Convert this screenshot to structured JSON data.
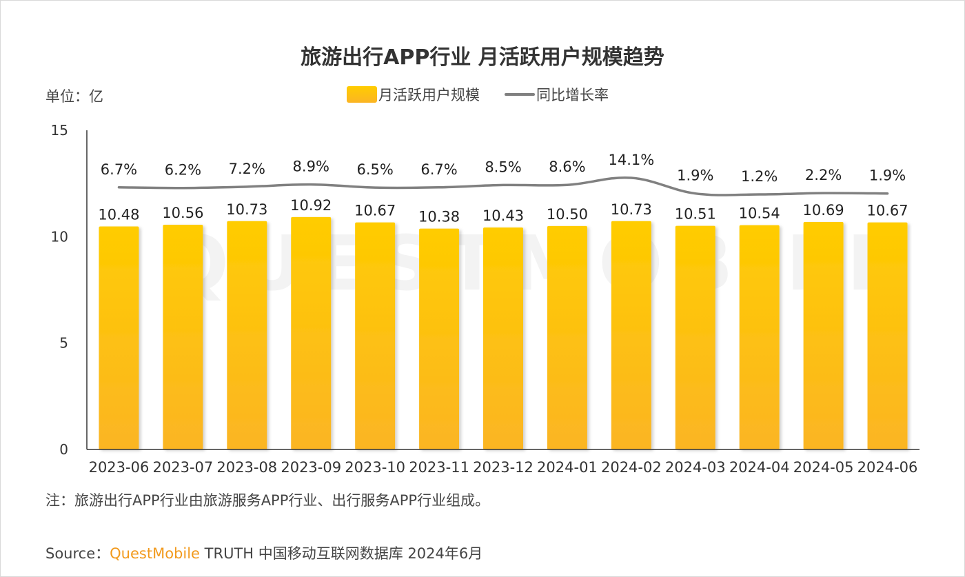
{
  "title": "旅游出行APP行业 月活跃用户规模趋势",
  "unit": "单位：亿",
  "legend": {
    "bar": "月活跃用户规模",
    "line": "同比增长率"
  },
  "note": "注：旅游出行APP行业由旅游服务APP行业、出行服务APP行业组成。",
  "source": {
    "prefix": "Source：",
    "brand": "QuestMobile",
    "rest": " TRUTH 中国移动互联网数据库 2024年6月"
  },
  "watermark": "QUESTMOBILE",
  "colors": {
    "bar_top": "#ffcc00",
    "bar_bottom": "#fbb524",
    "line": "#808080",
    "brand": "#f29a1d"
  },
  "chart_data": {
    "type": "bar",
    "categories": [
      "2023-06",
      "2023-07",
      "2023-08",
      "2023-09",
      "2023-10",
      "2023-11",
      "2023-12",
      "2024-01",
      "2024-02",
      "2024-03",
      "2024-04",
      "2024-05",
      "2024-06"
    ],
    "series": [
      {
        "name": "月活跃用户规模",
        "type": "bar",
        "values": [
          10.48,
          10.56,
          10.73,
          10.92,
          10.67,
          10.38,
          10.43,
          10.5,
          10.73,
          10.51,
          10.54,
          10.69,
          10.67
        ],
        "labels": [
          "10.48",
          "10.56",
          "10.73",
          "10.92",
          "10.67",
          "10.38",
          "10.43",
          "10.50",
          "10.73",
          "10.51",
          "10.54",
          "10.69",
          "10.67"
        ]
      },
      {
        "name": "同比增长率",
        "type": "line",
        "values": [
          6.7,
          6.2,
          7.2,
          8.9,
          6.5,
          6.7,
          8.5,
          8.6,
          14.1,
          1.9,
          1.2,
          2.2,
          1.9
        ],
        "labels": [
          "6.7%",
          "6.2%",
          "7.2%",
          "8.9%",
          "6.5%",
          "6.7%",
          "8.5%",
          "8.6%",
          "14.1%",
          "1.9%",
          "1.2%",
          "2.2%",
          "1.9%"
        ]
      }
    ],
    "y_ticks": [
      "0",
      "5",
      "10",
      "15"
    ],
    "ylim": [
      0,
      15
    ],
    "grid": false,
    "legend_position": "top-center"
  }
}
